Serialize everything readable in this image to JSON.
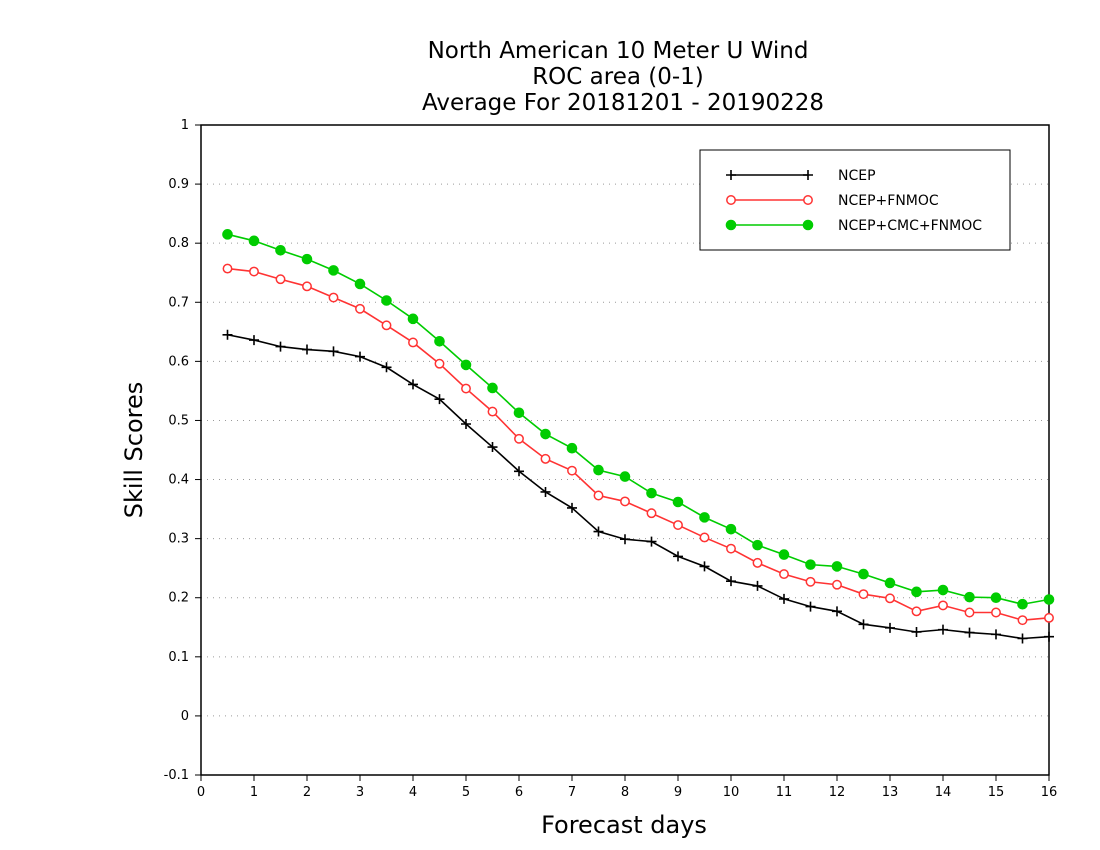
{
  "chart_data": {
    "type": "line",
    "title": [
      "North American 10 Meter U Wind",
      "ROC area (0-1)",
      "Average For 20181201 - 20190228"
    ],
    "xlabel": "Forecast days",
    "ylabel": "Skill Scores",
    "xlim": [
      0,
      16
    ],
    "ylim": [
      -0.1,
      1
    ],
    "xticks": [
      0,
      1,
      2,
      3,
      4,
      5,
      6,
      7,
      8,
      9,
      10,
      11,
      12,
      13,
      14,
      15,
      16
    ],
    "yticks": [
      -0.1,
      0,
      0.1,
      0.2,
      0.3,
      0.4,
      0.5,
      0.6,
      0.7,
      0.8,
      0.9,
      1
    ],
    "ytick_labels": [
      "-0.1",
      "0",
      "0.1",
      "0.2",
      "0.3",
      "0.4",
      "0.5",
      "0.6",
      "0.7",
      "0.8",
      "0.9",
      "1"
    ],
    "grid": "horizontal dotted",
    "legend_position": "top-right",
    "x": [
      0.5,
      1,
      1.5,
      2,
      2.5,
      3,
      3.5,
      4,
      4.5,
      5,
      5.5,
      6,
      6.5,
      7,
      7.5,
      8,
      8.5,
      9,
      9.5,
      10,
      10.5,
      11,
      11.5,
      12,
      12.5,
      13,
      13.5,
      14,
      14.5,
      15,
      15.5,
      16
    ],
    "series": [
      {
        "name": "NCEP",
        "color": "#000000",
        "marker": "plus",
        "values": [
          0.645,
          0.636,
          0.625,
          0.62,
          0.617,
          0.608,
          0.59,
          0.561,
          0.536,
          0.494,
          0.455,
          0.414,
          0.379,
          0.352,
          0.312,
          0.299,
          0.295,
          0.27,
          0.253,
          0.228,
          0.22,
          0.198,
          0.185,
          0.177,
          0.155,
          0.149,
          0.142,
          0.146,
          0.141,
          0.138,
          0.131,
          0.134
        ]
      },
      {
        "name": "NCEP+FNMOC",
        "color": "#ff3333",
        "marker": "open-circle",
        "values": [
          0.757,
          0.752,
          0.739,
          0.727,
          0.708,
          0.689,
          0.661,
          0.632,
          0.596,
          0.554,
          0.515,
          0.469,
          0.435,
          0.415,
          0.373,
          0.363,
          0.343,
          0.323,
          0.302,
          0.283,
          0.259,
          0.24,
          0.227,
          0.222,
          0.206,
          0.199,
          0.177,
          0.187,
          0.175,
          0.175,
          0.162,
          0.166
        ]
      },
      {
        "name": "NCEP+CMC+FNMOC",
        "color": "#00cc00",
        "marker": "filled-circle",
        "values": [
          0.815,
          0.804,
          0.788,
          0.773,
          0.754,
          0.731,
          0.703,
          0.672,
          0.634,
          0.594,
          0.555,
          0.513,
          0.477,
          0.453,
          0.416,
          0.405,
          0.377,
          0.362,
          0.336,
          0.316,
          0.289,
          0.273,
          0.256,
          0.253,
          0.24,
          0.225,
          0.21,
          0.213,
          0.201,
          0.2,
          0.189,
          0.197
        ]
      }
    ]
  }
}
